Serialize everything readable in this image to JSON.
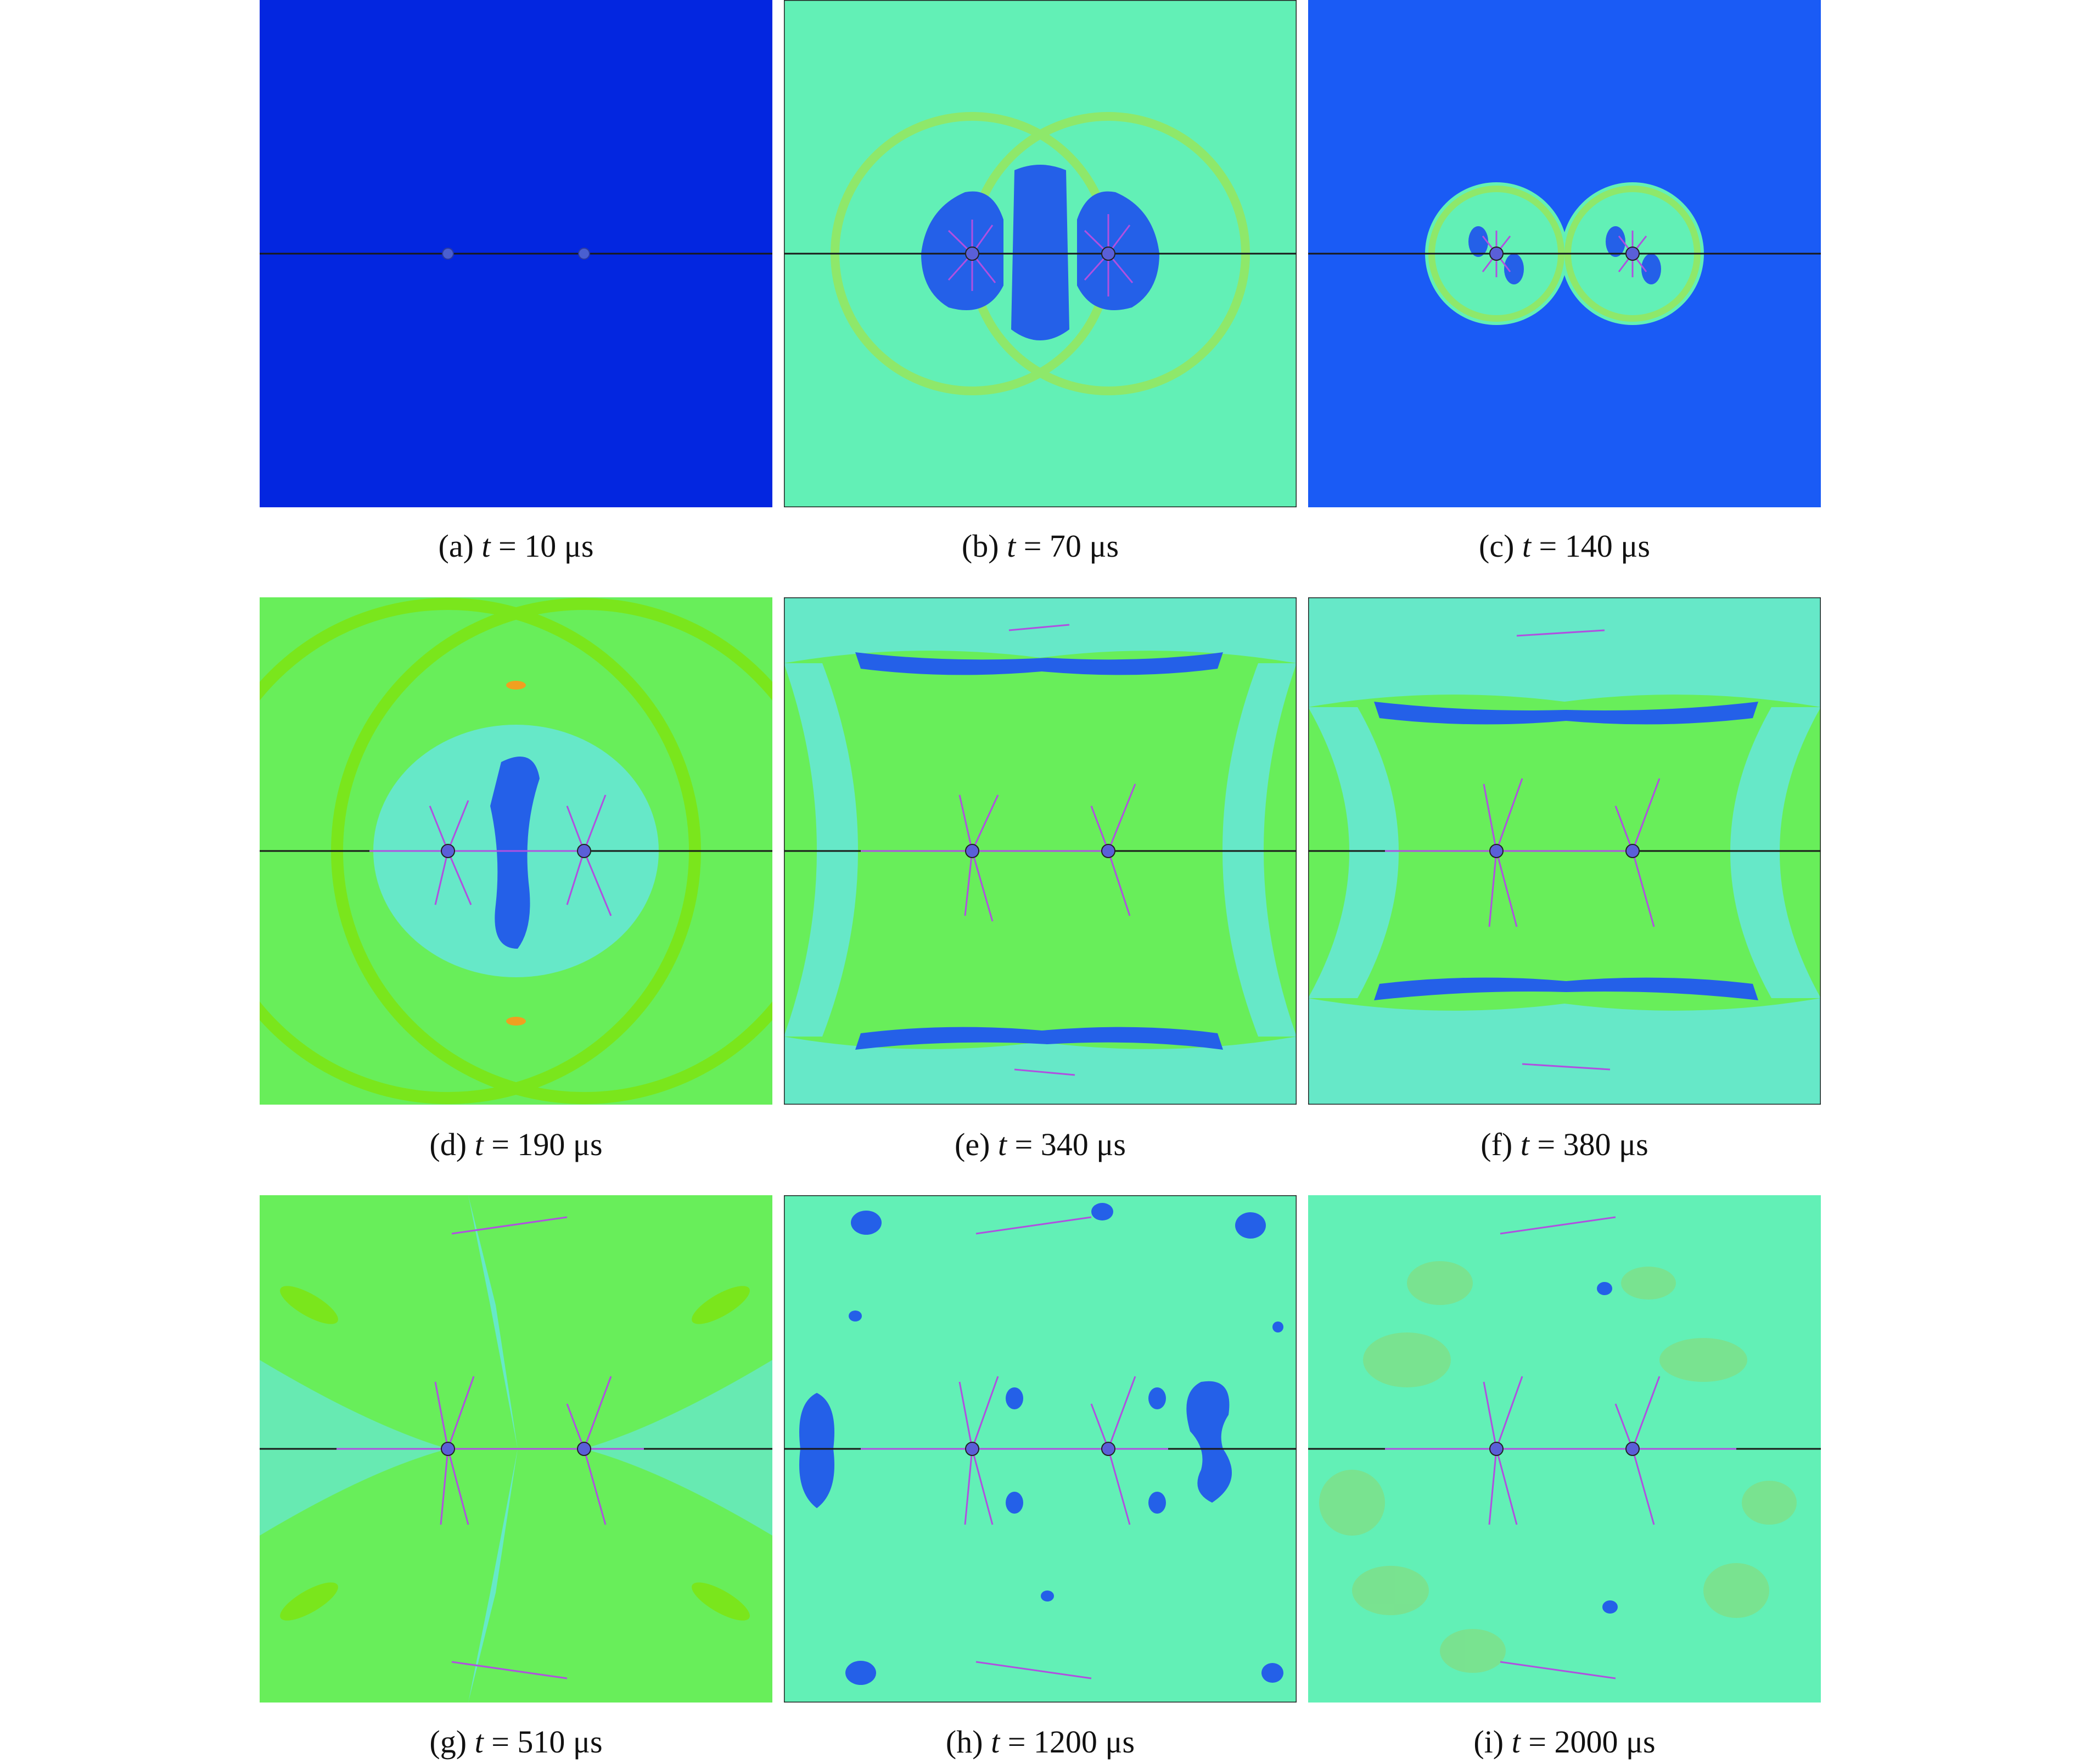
{
  "panels": [
    {
      "letter": "(a)",
      "var": "t",
      "value": "= 10 μs"
    },
    {
      "letter": "(b)",
      "var": "t",
      "value": "= 70 μs"
    },
    {
      "letter": "(c)",
      "var": "t",
      "value": "= 140 μs"
    },
    {
      "letter": "(d)",
      "var": "t",
      "value": "= 190 μs"
    },
    {
      "letter": "(e)",
      "var": "t",
      "value": "= 340 μs"
    },
    {
      "letter": "(f)",
      "var": "t",
      "value": "= 380 μs"
    },
    {
      "letter": "(g)",
      "var": "t",
      "value": "= 510 μs"
    },
    {
      "letter": "(h)",
      "var": "t",
      "value": "= 1200 μs"
    },
    {
      "letter": "(i)",
      "var": "t",
      "value": "= 2000 μs"
    }
  ],
  "colors": {
    "deep_blue": "#0326e0",
    "blue": "#1a5bf5",
    "mid_blue": "#2460e8",
    "aqua": "#62f0b6",
    "aqua_light": "#66e8c8",
    "green": "#68ee5a",
    "lime": "#7ae61c",
    "crack": "#b050e0",
    "borehole": "#5a5fd8",
    "axis_line": "#1a1a1a"
  }
}
